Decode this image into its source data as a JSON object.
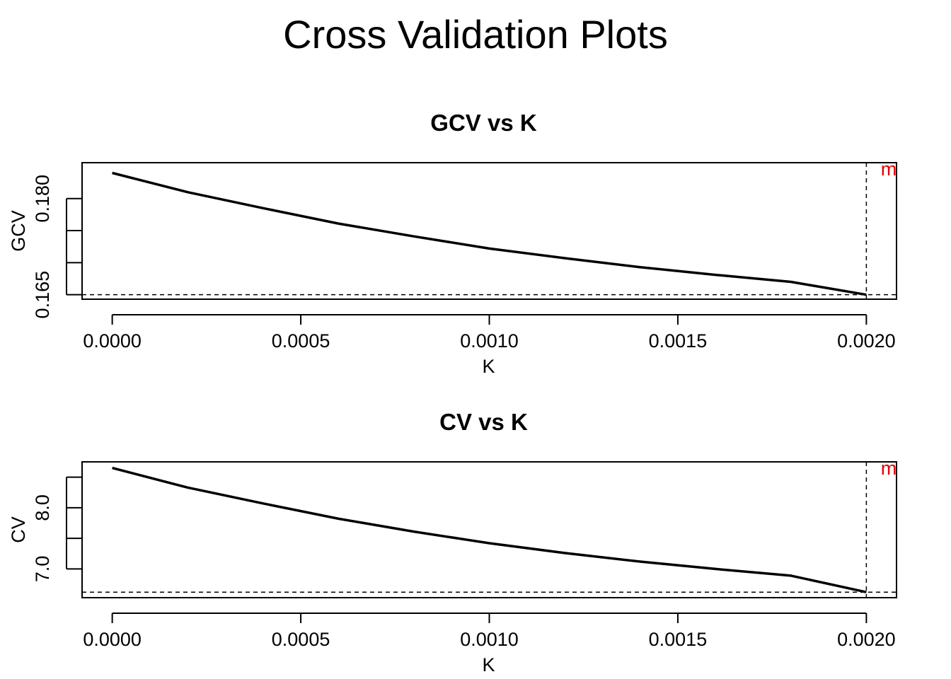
{
  "title": "Cross Validation Plots",
  "colors": {
    "marker": "#e60000",
    "line": "#000000"
  },
  "chart_data": [
    {
      "type": "line",
      "title": "GCV vs K",
      "xlabel": "K",
      "ylabel": "GCV",
      "xlim": [
        -8e-05,
        0.00208
      ],
      "ylim": [
        0.1643,
        0.1856
      ],
      "x_ticks": [
        0,
        0.0005,
        0.001,
        0.0015,
        0.002
      ],
      "x_tick_labels": [
        "0.0000",
        "0.0005",
        "0.0010",
        "0.0015",
        "0.0020"
      ],
      "y_ticks": [
        0.165,
        0.17,
        0.175,
        0.18
      ],
      "y_tick_labels": [
        "0.165",
        "",
        "",
        "0.180"
      ],
      "x": [
        0,
        0.0002,
        0.0004,
        0.0006,
        0.0008,
        0.001,
        0.0012,
        0.0014,
        0.0016,
        0.0018,
        0.002
      ],
      "y": [
        0.184,
        0.181,
        0.1785,
        0.1761,
        0.1741,
        0.1722,
        0.1707,
        0.1693,
        0.1681,
        0.167,
        0.165
      ],
      "min_k": 0.002,
      "min_value": 0.165,
      "min_label": "m"
    },
    {
      "type": "line",
      "title": "CV vs K",
      "xlabel": "K",
      "ylabel": "CV",
      "xlim": [
        -8e-05,
        0.00208
      ],
      "ylim": [
        6.53,
        8.75
      ],
      "x_ticks": [
        0,
        0.0005,
        0.001,
        0.0015,
        0.002
      ],
      "x_tick_labels": [
        "0.0000",
        "0.0005",
        "0.0010",
        "0.0015",
        "0.0020"
      ],
      "y_ticks": [
        7.0,
        7.5,
        8.0,
        8.5
      ],
      "y_tick_labels": [
        "7.0",
        "",
        "8.0",
        ""
      ],
      "x": [
        0,
        0.0002,
        0.0004,
        0.0006,
        0.0008,
        0.001,
        0.0012,
        0.0014,
        0.0016,
        0.0018,
        0.002
      ],
      "y": [
        8.65,
        8.33,
        8.07,
        7.82,
        7.61,
        7.42,
        7.26,
        7.12,
        7.0,
        6.89,
        6.62
      ],
      "min_k": 0.002,
      "min_value": 6.62,
      "min_label": "m"
    }
  ]
}
